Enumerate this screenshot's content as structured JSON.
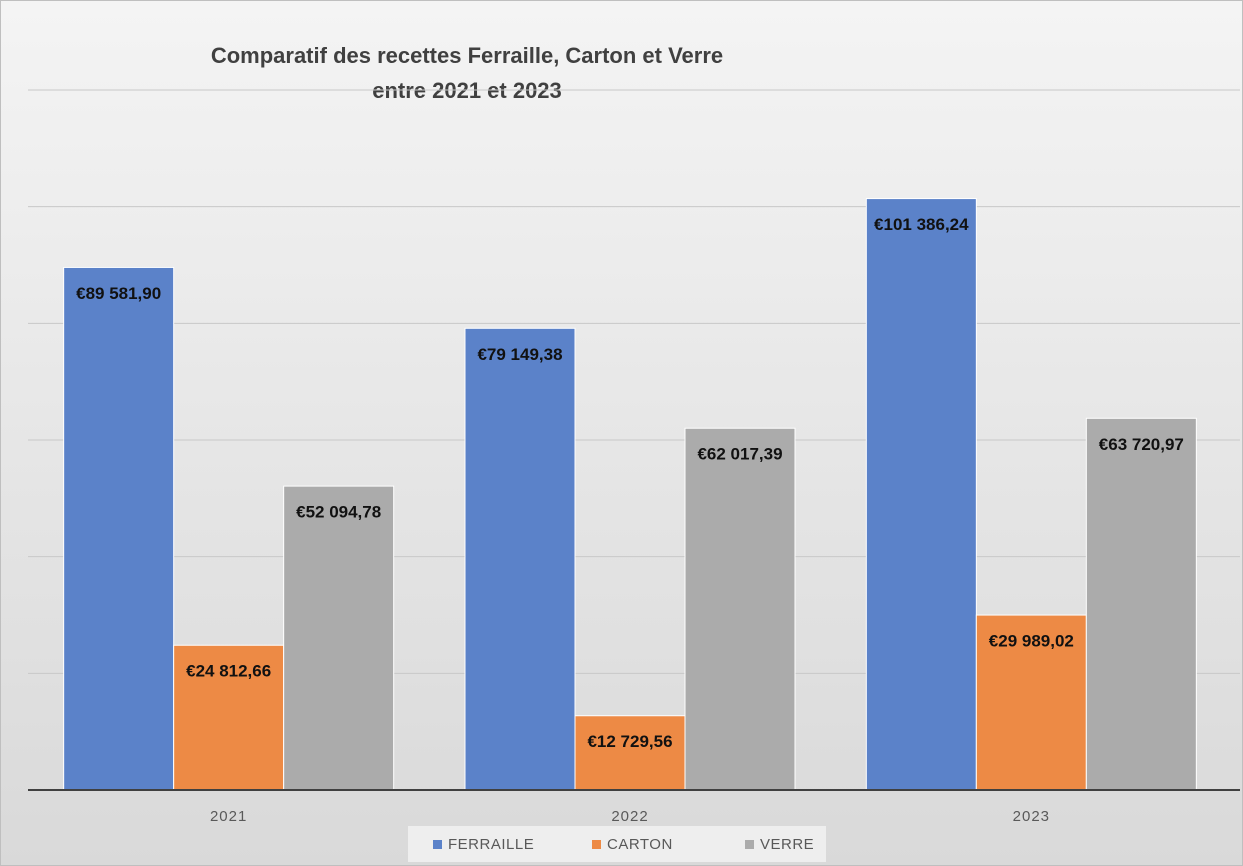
{
  "chart_data": {
    "type": "bar",
    "title": [
      "Comparatif  des recettes Ferraille, Carton et Verre",
      "entre 2021 et 2023"
    ],
    "categories": [
      "2021",
      "2022",
      "2023"
    ],
    "series": [
      {
        "name": "FERRAILLE",
        "color": "#5b82c9",
        "values": [
          89581.9,
          79149.38,
          101386.24
        ],
        "value_labels": [
          "€89 581,90",
          "€79 149,38",
          "€101 386,24"
        ]
      },
      {
        "name": "CARTON",
        "color": "#ed8a45",
        "values": [
          24812.66,
          12729.56,
          29989.02
        ],
        "value_labels": [
          "€24 812,66",
          "€12 729,56",
          "€29 989,02"
        ]
      },
      {
        "name": "VERRE",
        "color": "#ababab",
        "values": [
          52094.78,
          62017.39,
          63720.97
        ],
        "value_labels": [
          "€52 094,78",
          "€62 017,39",
          "€63 720,97"
        ]
      }
    ],
    "ylim": [
      0,
      120000
    ],
    "yticks": [
      0,
      20000,
      40000,
      60000,
      80000,
      100000,
      120000
    ],
    "grid": true,
    "legend": "bottom"
  }
}
